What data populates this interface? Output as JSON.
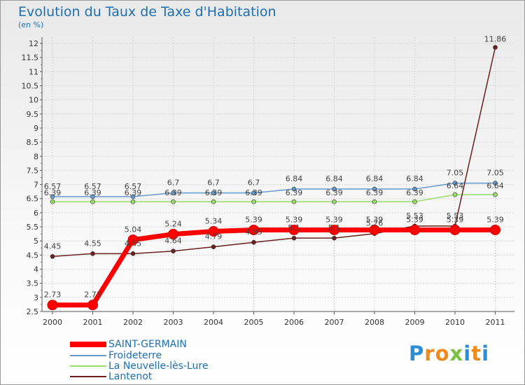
{
  "chart_data": {
    "type": "line",
    "title": "Evolution du Taux de Taxe d'Habitation",
    "ylabel": "(en %)",
    "categories": [
      "2000",
      "2001",
      "2002",
      "2003",
      "2004",
      "2005",
      "2006",
      "2007",
      "2008",
      "2009",
      "2010",
      "2011"
    ],
    "ylim": [
      2.5,
      12
    ],
    "yticks": [
      "2.5",
      "3",
      "3.5",
      "4",
      "4.5",
      "5",
      "5.5",
      "6",
      "6.5",
      "7",
      "7.5",
      "8",
      "8.5",
      "9",
      "9.5",
      "10",
      "10.5",
      "11",
      "11.5",
      "12"
    ],
    "series": [
      {
        "name": "SAINT-GERMAIN",
        "color": "#ff0000",
        "values": [
          2.73,
          2.73,
          5.04,
          5.24,
          5.34,
          5.39,
          5.39,
          5.39,
          5.39,
          5.39,
          5.39,
          5.39
        ],
        "labels": [
          "2.73",
          "2.73",
          "5.04",
          "5.24",
          "5.34",
          "5.39",
          "5.39",
          "5.39",
          "5.39",
          "5.39",
          "5.39",
          "5.39"
        ]
      },
      {
        "name": "Froideterre",
        "color": "#6699cc",
        "values": [
          6.57,
          6.57,
          6.57,
          6.7,
          6.7,
          6.7,
          6.84,
          6.84,
          6.84,
          6.84,
          7.05,
          7.05
        ],
        "labels": [
          "6.57",
          "6.57",
          "6.57",
          "6.7",
          "6.7",
          "6.7",
          "6.84",
          "6.84",
          "6.84",
          "6.84",
          "7.05",
          "7.05"
        ]
      },
      {
        "name": "La Neuvelle-lès-Lure",
        "color": "#99dd66",
        "values": [
          6.39,
          6.39,
          6.39,
          6.39,
          6.39,
          6.39,
          6.39,
          6.39,
          6.39,
          6.39,
          6.64,
          6.64
        ],
        "labels": [
          "6.39",
          "6.39",
          "6.39",
          "6.39",
          "6.39",
          "6.39",
          "6.39",
          "6.39",
          "6.39",
          "6.39",
          "6.64",
          "6.64"
        ]
      },
      {
        "name": "Lantenot",
        "color": "#6b1f1f",
        "values": [
          4.45,
          4.55,
          4.55,
          4.64,
          4.79,
          4.95,
          5.1,
          5.1,
          5.26,
          5.53,
          5.53,
          11.86
        ],
        "labels": [
          "4.45",
          "4.55",
          "4.55",
          "4.64",
          "4.79",
          "4.95",
          "5.1",
          "5.1",
          "5.26",
          "5.53",
          "5.53",
          "11.86"
        ]
      }
    ]
  },
  "branding": {
    "logo_letters": [
      "P",
      "r",
      "o",
      "x",
      "i",
      "t",
      "i"
    ],
    "logo_colors": [
      "#2a8fd8",
      "#f08a1c",
      "#f08a1c",
      "#7ac142",
      "#2a8fd8",
      "#f08a1c",
      "#2a8fd8"
    ]
  }
}
